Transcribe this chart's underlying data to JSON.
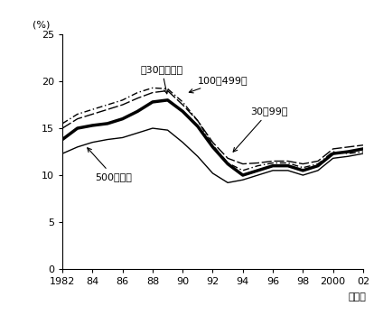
{
  "years": [
    1982,
    1983,
    1984,
    1985,
    1986,
    1987,
    1988,
    1989,
    1990,
    1991,
    1992,
    1993,
    1994,
    1995,
    1996,
    1997,
    1998,
    1999,
    2000,
    2001,
    2002
  ],
  "series_30plus_total": [
    13.8,
    15.0,
    15.3,
    15.5,
    16.0,
    16.8,
    17.8,
    18.0,
    16.8,
    15.2,
    13.0,
    11.2,
    10.0,
    10.5,
    11.0,
    11.0,
    10.5,
    11.0,
    12.3,
    12.5,
    12.8
  ],
  "series_100_499": [
    15.5,
    16.5,
    17.0,
    17.5,
    18.0,
    18.8,
    19.3,
    19.2,
    17.8,
    15.8,
    13.2,
    11.3,
    10.5,
    11.0,
    11.3,
    11.3,
    10.8,
    11.2,
    12.5,
    12.3,
    12.5
  ],
  "series_30_99": [
    15.0,
    16.0,
    16.5,
    17.0,
    17.5,
    18.2,
    18.8,
    19.0,
    17.5,
    15.8,
    13.5,
    11.8,
    11.2,
    11.3,
    11.5,
    11.5,
    11.2,
    11.5,
    12.8,
    13.0,
    13.2
  ],
  "series_500plus": [
    12.3,
    13.0,
    13.5,
    13.8,
    14.0,
    14.5,
    15.0,
    14.8,
    13.5,
    12.0,
    10.2,
    9.2,
    9.5,
    10.0,
    10.5,
    10.5,
    10.0,
    10.5,
    11.8,
    12.0,
    12.3
  ],
  "ylabel": "(%)",
  "xlabel": "（年）",
  "ylim": [
    0,
    25
  ],
  "yticks": [
    0,
    5,
    10,
    15,
    20,
    25
  ],
  "xticks": [
    1982,
    1984,
    1986,
    1988,
    1990,
    1992,
    1994,
    1996,
    1998,
    2000,
    2002
  ],
  "xticklabels": [
    "1982",
    "84",
    "86",
    "88",
    "90",
    "92",
    "94",
    "96",
    "98",
    "2000",
    "02"
  ],
  "label_30plus": "ン30人以上計",
  "label_100_499": "100～499人",
  "label_30_99": "30～99人",
  "label_500plus": "500人以上",
  "background_color": "#ffffff"
}
